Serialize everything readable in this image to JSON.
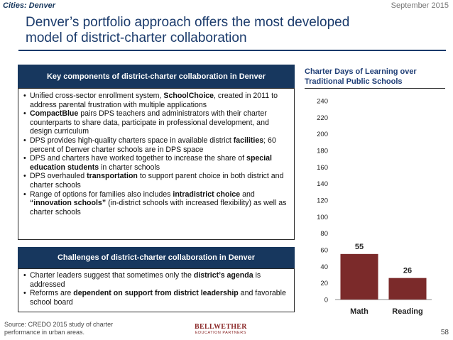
{
  "header": {
    "section": "Cities: Denver",
    "date": "September 2015",
    "title_line1": "Denver’s portfolio approach offers the most developed",
    "title_line2": "model of district-charter collaboration"
  },
  "key_panel": {
    "heading": "Key components of district-charter collaboration in Denver",
    "items": [
      {
        "parts": [
          {
            "t": "Unified cross-sector enrollment system, ",
            "b": false
          },
          {
            "t": "SchoolChoice",
            "b": true
          },
          {
            "t": ", created in 2011 to address parental frustration with multiple applications",
            "b": false
          }
        ]
      },
      {
        "parts": [
          {
            "t": "CompactBlue",
            "b": true
          },
          {
            "t": " pairs DPS teachers and administrators with their charter counterparts to share data, participate in professional development, and design curriculum",
            "b": false
          }
        ]
      },
      {
        "parts": [
          {
            "t": "DPS provides high-quality charters space in available district ",
            "b": false
          },
          {
            "t": "facilities",
            "b": true
          },
          {
            "t": "; 60 percent of Denver charter schools are in DPS space",
            "b": false
          }
        ]
      },
      {
        "parts": [
          {
            "t": "DPS and charters have worked together to increase the share of ",
            "b": false
          },
          {
            "t": "special education students",
            "b": true
          },
          {
            "t": " in charter schools",
            "b": false
          }
        ]
      },
      {
        "parts": [
          {
            "t": "DPS overhauled ",
            "b": false
          },
          {
            "t": "transportation",
            "b": true
          },
          {
            "t": " to support parent choice in both district and charter schools",
            "b": false
          }
        ]
      },
      {
        "parts": [
          {
            "t": "Range of options for families also includes ",
            "b": false
          },
          {
            "t": "intradistrict choice",
            "b": true
          },
          {
            "t": " and ",
            "b": false
          },
          {
            "t": "“innovation schools”",
            "b": true
          },
          {
            "t": " (in-district schools with increased flexibility) as well as charter schools",
            "b": false
          }
        ]
      }
    ]
  },
  "challenges_panel": {
    "heading": "Challenges of district-charter collaboration in Denver",
    "items": [
      {
        "parts": [
          {
            "t": "Charter leaders suggest that sometimes only the ",
            "b": false
          },
          {
            "t": "district’s agenda",
            "b": true
          },
          {
            "t": " is addressed",
            "b": false
          }
        ]
      },
      {
        "parts": [
          {
            "t": "Reforms are ",
            "b": false
          },
          {
            "t": "dependent on support from district leadership",
            "b": true
          },
          {
            "t": " and favorable school board",
            "b": false
          }
        ]
      }
    ]
  },
  "chart_data": {
    "type": "bar",
    "title": "Charter Days of Learning over Traditional Public Schools",
    "categories": [
      "Math",
      "Reading"
    ],
    "values": [
      55,
      26
    ],
    "data_labels": [
      "55",
      "26"
    ],
    "ylim": [
      0,
      240
    ],
    "yticks": [
      0,
      20,
      40,
      60,
      80,
      100,
      120,
      140,
      160,
      180,
      200,
      220,
      240
    ],
    "grid": false,
    "bar_color": "#7b2a2a"
  },
  "footer": {
    "source": "Source: CREDO 2015 study of charter performance in urban areas.",
    "logo_main": "BELLWETHER",
    "logo_sub": "EDUCATION PARTNERS",
    "page_number": "58"
  }
}
